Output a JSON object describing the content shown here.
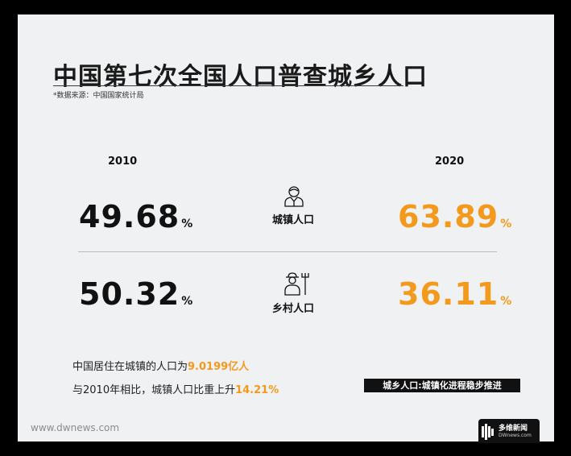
{
  "title": "中国第七次全国人口普查城乡人口",
  "source": "*数据来源：中国国家统计局",
  "years": {
    "left": "2010",
    "right": "2020"
  },
  "percent_sign": "%",
  "urban": {
    "label": "城镇人口",
    "icon": "businessman-icon",
    "value_2010": "49.68",
    "value_2020": "63.89"
  },
  "rural": {
    "label": "乡村人口",
    "icon": "farmer-with-pitchfork-icon",
    "value_2010": "50.32",
    "value_2020": "36.11"
  },
  "facts": {
    "line1_prefix": "中国居住在城镇的人口为",
    "line1_highlight": "9.0199亿人",
    "line2_prefix": "与2010年相比，城镇人口比重上升",
    "line2_highlight": "14.21%"
  },
  "tag": "城乡人口:城镇化进程稳步推进",
  "site": "www.dwnews.com",
  "brand": {
    "name": "多维新闻",
    "url": "DWnews.com"
  },
  "colors": {
    "accent": "#f39a1e",
    "background": "#eff1f2",
    "frame": "#000000"
  }
}
